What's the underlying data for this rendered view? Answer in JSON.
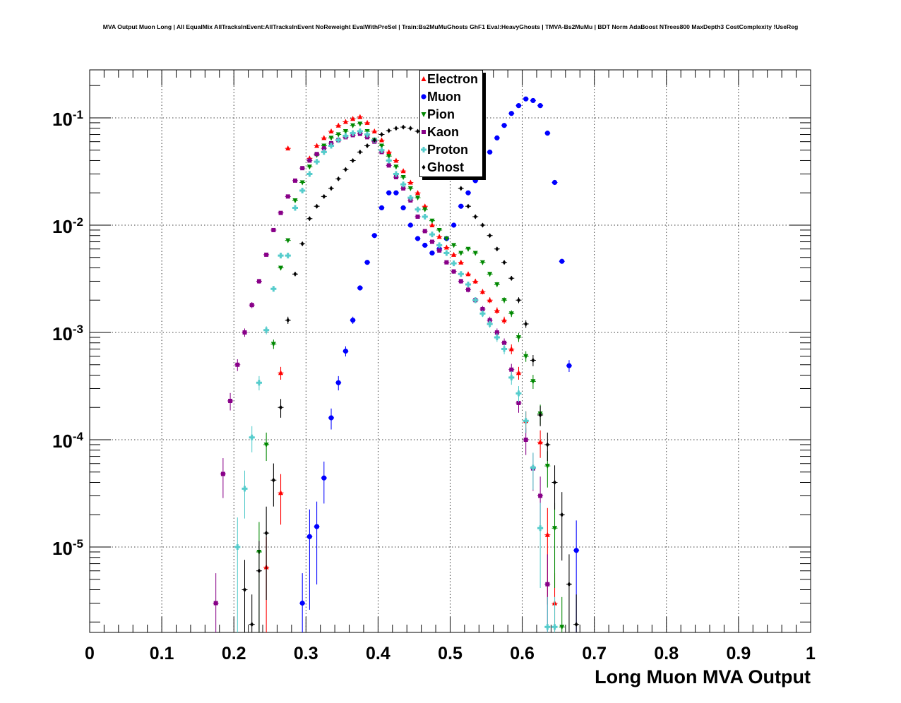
{
  "chart_data": {
    "type": "scatter",
    "title": "MVA Output Muon Long | All EqualMix AllTracksInEvent:AllTracksInEvent NoReweight EvalWithPreSel | Train:Bs2MuMuGhosts GhF1 Eval:HeavyGhosts | TMVA-Bs2MuMu | BDT Norm AdaBoost NTrees800 MaxDepth3 CostComplexity !UseReg",
    "xlabel": "Long Muon MVA Output",
    "ylabel": "",
    "xlim": [
      0,
      1
    ],
    "ylim": [
      1.6e-06,
      0.28
    ],
    "yscale": "log",
    "grid": true,
    "legend_position": "top-center",
    "x_ticks": [
      "0",
      "0.1",
      "0.2",
      "0.3",
      "0.4",
      "0.5",
      "0.6",
      "0.7",
      "0.8",
      "0.9",
      "1"
    ],
    "y_ticks": [
      {
        "value": 1e-05,
        "base": "10",
        "exp": "-5"
      },
      {
        "value": 0.0001,
        "base": "10",
        "exp": "-4"
      },
      {
        "value": 0.001,
        "base": "10",
        "exp": "-3"
      },
      {
        "value": 0.01,
        "base": "10",
        "exp": "-2"
      },
      {
        "value": 0.1,
        "base": "10",
        "exp": "-1"
      }
    ],
    "series": [
      {
        "name": "Electron",
        "color": "#ff0000",
        "marker": "triangle-up",
        "points": [
          [
            0.245,
            6.5e-06
          ],
          [
            0.265,
            0.00042
          ],
          [
            0.275,
            0.052
          ],
          [
            0.265,
            3.2e-05
          ],
          [
            0.305,
            0.042
          ],
          [
            0.315,
            0.055
          ],
          [
            0.325,
            0.065
          ],
          [
            0.335,
            0.075
          ],
          [
            0.345,
            0.085
          ],
          [
            0.355,
            0.092
          ],
          [
            0.365,
            0.098
          ],
          [
            0.375,
            0.102
          ],
          [
            0.385,
            0.09
          ],
          [
            0.395,
            0.075
          ],
          [
            0.405,
            0.062
          ],
          [
            0.415,
            0.048
          ],
          [
            0.425,
            0.04
          ],
          [
            0.435,
            0.032
          ],
          [
            0.445,
            0.025
          ],
          [
            0.455,
            0.02
          ],
          [
            0.465,
            0.015
          ],
          [
            0.475,
            0.01
          ],
          [
            0.485,
            0.0078
          ],
          [
            0.495,
            0.0062
          ],
          [
            0.505,
            0.0053
          ],
          [
            0.515,
            0.0045
          ],
          [
            0.525,
            0.0035
          ],
          [
            0.535,
            0.003
          ],
          [
            0.545,
            0.0024
          ],
          [
            0.555,
            0.002
          ],
          [
            0.565,
            0.0016
          ],
          [
            0.575,
            0.0013
          ],
          [
            0.585,
            0.0007
          ],
          [
            0.595,
            0.00042
          ],
          [
            0.605,
            0.00015
          ],
          [
            0.625,
            9.5e-05
          ],
          [
            0.635,
            1.3e-05
          ],
          [
            0.645,
            3e-06
          ]
        ]
      },
      {
        "name": "Muon",
        "color": "#0000ff",
        "marker": "circle",
        "points": [
          [
            0.295,
            3e-06
          ],
          [
            0.305,
            1.25e-05
          ],
          [
            0.315,
            1.55e-05
          ],
          [
            0.325,
            4.4e-05
          ],
          [
            0.335,
            0.00016
          ],
          [
            0.345,
            0.00034
          ],
          [
            0.355,
            0.00067
          ],
          [
            0.365,
            0.0013
          ],
          [
            0.375,
            0.0026
          ],
          [
            0.385,
            0.0045
          ],
          [
            0.395,
            0.008
          ],
          [
            0.405,
            0.0145
          ],
          [
            0.415,
            0.02
          ],
          [
            0.425,
            0.02
          ],
          [
            0.435,
            0.0145
          ],
          [
            0.445,
            0.01
          ],
          [
            0.455,
            0.0075
          ],
          [
            0.465,
            0.0065
          ],
          [
            0.475,
            0.0055
          ],
          [
            0.485,
            0.006
          ],
          [
            0.495,
            0.0075
          ],
          [
            0.505,
            0.01
          ],
          [
            0.515,
            0.015
          ],
          [
            0.525,
            0.02
          ],
          [
            0.535,
            0.026
          ],
          [
            0.545,
            0.035
          ],
          [
            0.555,
            0.048
          ],
          [
            0.565,
            0.065
          ],
          [
            0.575,
            0.085
          ],
          [
            0.585,
            0.11
          ],
          [
            0.595,
            0.13
          ],
          [
            0.605,
            0.15
          ],
          [
            0.615,
            0.145
          ],
          [
            0.625,
            0.13
          ],
          [
            0.635,
            0.072
          ],
          [
            0.645,
            0.025
          ],
          [
            0.655,
            0.0046
          ],
          [
            0.665,
            0.00049
          ],
          [
            0.675,
            9.3e-06
          ]
        ]
      },
      {
        "name": "Pion",
        "color": "#008800",
        "marker": "triangle-down",
        "points": [
          [
            0.235,
            9e-06
          ],
          [
            0.245,
            9e-05
          ],
          [
            0.255,
            0.00078
          ],
          [
            0.265,
            0.004
          ],
          [
            0.275,
            0.0072
          ],
          [
            0.285,
            0.017
          ],
          [
            0.295,
            0.025
          ],
          [
            0.305,
            0.035
          ],
          [
            0.315,
            0.045
          ],
          [
            0.325,
            0.055
          ],
          [
            0.335,
            0.065
          ],
          [
            0.345,
            0.07
          ],
          [
            0.355,
            0.075
          ],
          [
            0.365,
            0.085
          ],
          [
            0.375,
            0.088
          ],
          [
            0.385,
            0.075
          ],
          [
            0.395,
            0.062
          ],
          [
            0.405,
            0.055
          ],
          [
            0.415,
            0.044
          ],
          [
            0.425,
            0.035
          ],
          [
            0.435,
            0.028
          ],
          [
            0.445,
            0.022
          ],
          [
            0.455,
            0.018
          ],
          [
            0.465,
            0.014
          ],
          [
            0.475,
            0.011
          ],
          [
            0.485,
            0.009
          ],
          [
            0.495,
            0.0075
          ],
          [
            0.505,
            0.0065
          ],
          [
            0.515,
            0.0055
          ],
          [
            0.525,
            0.006
          ],
          [
            0.535,
            0.0055
          ],
          [
            0.545,
            0.0045
          ],
          [
            0.555,
            0.0035
          ],
          [
            0.565,
            0.0028
          ],
          [
            0.575,
            0.002
          ],
          [
            0.585,
            0.0015
          ],
          [
            0.595,
            0.0009
          ],
          [
            0.605,
            0.0006
          ],
          [
            0.615,
            0.00035
          ],
          [
            0.625,
            0.000175
          ],
          [
            0.635,
            5.7e-05
          ],
          [
            0.645,
            1.5e-05
          ],
          [
            0.655,
            1.8e-06
          ]
        ]
      },
      {
        "name": "Kaon",
        "color": "#880088",
        "marker": "square",
        "points": [
          [
            0.175,
            3e-06
          ],
          [
            0.185,
            4.8e-05
          ],
          [
            0.195,
            0.00023
          ],
          [
            0.205,
            0.0005
          ],
          [
            0.215,
            0.001
          ],
          [
            0.225,
            0.0018
          ],
          [
            0.235,
            0.003
          ],
          [
            0.245,
            0.0053
          ],
          [
            0.255,
            0.009
          ],
          [
            0.265,
            0.013
          ],
          [
            0.275,
            0.0185
          ],
          [
            0.285,
            0.026
          ],
          [
            0.295,
            0.034
          ],
          [
            0.305,
            0.04
          ],
          [
            0.315,
            0.046
          ],
          [
            0.325,
            0.052
          ],
          [
            0.335,
            0.058
          ],
          [
            0.345,
            0.062
          ],
          [
            0.355,
            0.066
          ],
          [
            0.365,
            0.069
          ],
          [
            0.375,
            0.071
          ],
          [
            0.385,
            0.066
          ],
          [
            0.395,
            0.06
          ],
          [
            0.405,
            0.048
          ],
          [
            0.415,
            0.036
          ],
          [
            0.425,
            0.028
          ],
          [
            0.435,
            0.022
          ],
          [
            0.445,
            0.017
          ],
          [
            0.455,
            0.012
          ],
          [
            0.465,
            0.0088
          ],
          [
            0.475,
            0.007
          ],
          [
            0.485,
            0.0058
          ],
          [
            0.495,
            0.0045
          ],
          [
            0.505,
            0.0037
          ],
          [
            0.515,
            0.003
          ],
          [
            0.525,
            0.0025
          ],
          [
            0.535,
            0.002
          ],
          [
            0.545,
            0.00165
          ],
          [
            0.555,
            0.0013
          ],
          [
            0.565,
            0.001
          ],
          [
            0.575,
            0.0008
          ],
          [
            0.585,
            0.00045
          ],
          [
            0.595,
            0.00022
          ],
          [
            0.605,
            0.0001
          ],
          [
            0.615,
            5.4e-05
          ],
          [
            0.625,
            3e-05
          ],
          [
            0.635,
            4.5e-06
          ]
        ]
      },
      {
        "name": "Proton",
        "color": "#55cccc",
        "marker": "cross",
        "points": [
          [
            0.205,
            1e-05
          ],
          [
            0.215,
            3.5e-05
          ],
          [
            0.225,
            0.000105
          ],
          [
            0.235,
            0.00034
          ],
          [
            0.245,
            0.00105
          ],
          [
            0.255,
            0.00255
          ],
          [
            0.265,
            0.0052
          ],
          [
            0.275,
            0.0052
          ],
          [
            0.285,
            0.0145
          ],
          [
            0.295,
            0.021
          ],
          [
            0.305,
            0.03
          ],
          [
            0.315,
            0.039
          ],
          [
            0.325,
            0.048
          ],
          [
            0.335,
            0.055
          ],
          [
            0.345,
            0.062
          ],
          [
            0.355,
            0.068
          ],
          [
            0.365,
            0.072
          ],
          [
            0.375,
            0.075
          ],
          [
            0.385,
            0.07
          ],
          [
            0.395,
            0.062
          ],
          [
            0.405,
            0.05
          ],
          [
            0.415,
            0.04
          ],
          [
            0.425,
            0.03
          ],
          [
            0.435,
            0.024
          ],
          [
            0.445,
            0.018
          ],
          [
            0.455,
            0.014
          ],
          [
            0.465,
            0.012
          ],
          [
            0.475,
            0.0082
          ],
          [
            0.485,
            0.0065
          ],
          [
            0.495,
            0.0055
          ],
          [
            0.505,
            0.0044
          ],
          [
            0.515,
            0.0035
          ],
          [
            0.525,
            0.0028
          ],
          [
            0.535,
            0.002
          ],
          [
            0.545,
            0.0015
          ],
          [
            0.555,
            0.0012
          ],
          [
            0.565,
            0.0009
          ],
          [
            0.575,
            0.0007
          ],
          [
            0.585,
            0.00038
          ],
          [
            0.595,
            0.00027
          ],
          [
            0.605,
            0.00015
          ],
          [
            0.615,
            5.5e-05
          ],
          [
            0.625,
            1.5e-05
          ],
          [
            0.635,
            1.8e-06
          ],
          [
            0.645,
            1.8e-06
          ]
        ]
      },
      {
        "name": "Ghost",
        "color": "#000000",
        "marker": "diamond",
        "points": [
          [
            0.215,
            4e-06
          ],
          [
            0.225,
            1.9e-06
          ],
          [
            0.235,
            6e-06
          ],
          [
            0.245,
            1.35e-05
          ],
          [
            0.255,
            4.2e-05
          ],
          [
            0.265,
            0.0002
          ],
          [
            0.275,
            0.0013
          ],
          [
            0.285,
            0.0035
          ],
          [
            0.295,
            0.0067
          ],
          [
            0.305,
            0.0115
          ],
          [
            0.315,
            0.015
          ],
          [
            0.325,
            0.0185
          ],
          [
            0.335,
            0.022
          ],
          [
            0.345,
            0.027
          ],
          [
            0.355,
            0.033
          ],
          [
            0.365,
            0.04
          ],
          [
            0.375,
            0.048
          ],
          [
            0.385,
            0.055
          ],
          [
            0.395,
            0.062
          ],
          [
            0.405,
            0.07
          ],
          [
            0.415,
            0.076
          ],
          [
            0.425,
            0.08
          ],
          [
            0.435,
            0.082
          ],
          [
            0.445,
            0.08
          ],
          [
            0.455,
            0.075
          ],
          [
            0.465,
            0.07
          ],
          [
            0.475,
            0.06
          ],
          [
            0.485,
            0.05
          ],
          [
            0.495,
            0.04
          ],
          [
            0.505,
            0.03
          ],
          [
            0.515,
            0.022
          ],
          [
            0.525,
            0.015
          ],
          [
            0.535,
            0.012
          ],
          [
            0.545,
            0.01
          ],
          [
            0.555,
            0.008
          ],
          [
            0.565,
            0.006
          ],
          [
            0.575,
            0.0045
          ],
          [
            0.585,
            0.0032
          ],
          [
            0.595,
            0.002
          ],
          [
            0.605,
            0.0012
          ],
          [
            0.615,
            0.00055
          ],
          [
            0.625,
            0.00017
          ],
          [
            0.635,
            9e-05
          ],
          [
            0.645,
            4e-05
          ],
          [
            0.655,
            2e-05
          ],
          [
            0.665,
            4.5e-06
          ],
          [
            0.675,
            1.9e-06
          ]
        ]
      }
    ]
  }
}
